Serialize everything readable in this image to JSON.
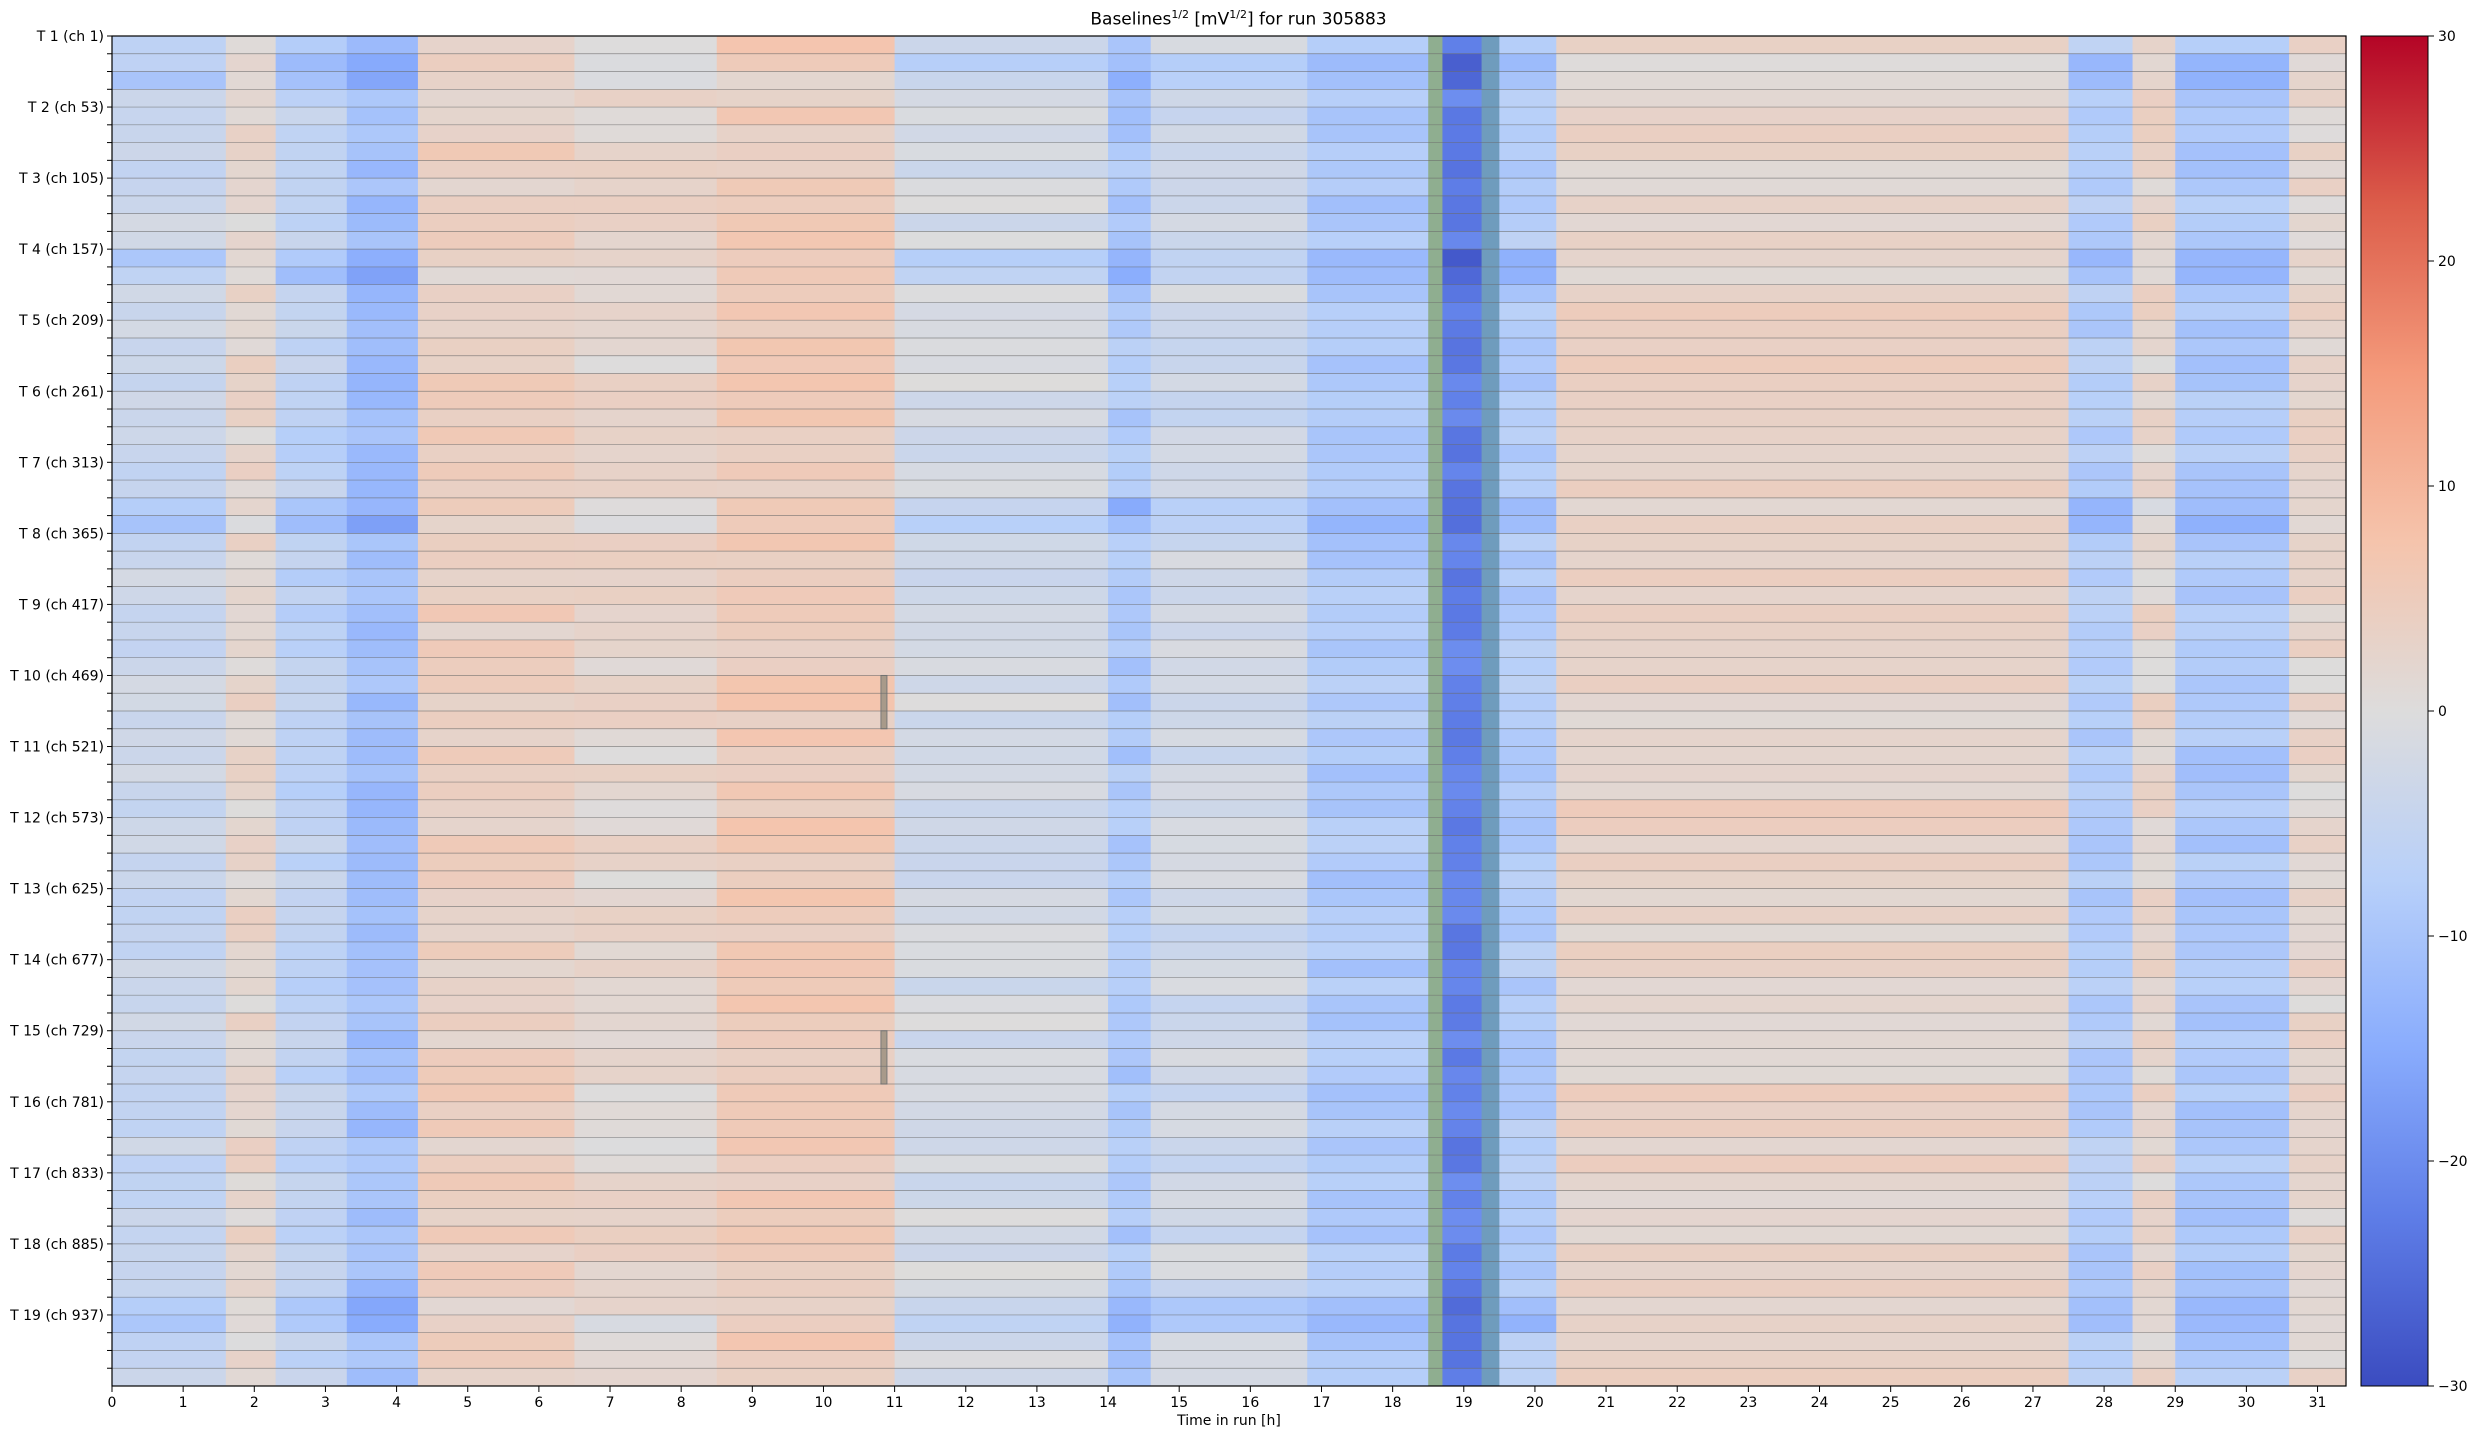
{
  "title_parts": {
    "base": "Baselines",
    "sup1": "1/2",
    "mid": " [mV",
    "sup2": "1/2",
    "end": "] for run 305883"
  },
  "chart_data": {
    "type": "heatmap",
    "title": "Baselines^1/2 [mV^1/2] for run 305883",
    "xlabel": "Time in run [h]",
    "ylabel": "",
    "xlim": [
      0,
      31.4
    ],
    "x_ticks": [
      0,
      1,
      2,
      3,
      4,
      5,
      6,
      7,
      8,
      9,
      10,
      11,
      12,
      13,
      14,
      15,
      16,
      17,
      18,
      19,
      20,
      21,
      22,
      23,
      24,
      25,
      26,
      27,
      28,
      29,
      30,
      31
    ],
    "y_tick_labels": [
      "T 1 (ch 1)",
      "T 2 (ch 53)",
      "T 3 (ch 105)",
      "T 4 (ch 157)",
      "T 5 (ch 209)",
      "T 6 (ch 261)",
      "T 7 (ch 313)",
      "T 8 (ch 365)",
      "T 9 (ch 417)",
      "T 10 (ch 469)",
      "T 11 (ch 521)",
      "T 12 (ch 573)",
      "T 13 (ch 625)",
      "T 14 (ch 677)",
      "T 15 (ch 729)",
      "T 16 (ch 781)",
      "T 17 (ch 833)",
      "T 18 (ch 885)",
      "T 19 (ch 937)"
    ],
    "n_rows": 76,
    "rows_per_tower": 4,
    "colorbar": {
      "colormap": "coolwarm",
      "vmin": -30,
      "vmax": 30,
      "ticks": [
        30,
        20,
        10,
        0,
        -10,
        -20,
        -30
      ],
      "colors": [
        "#3b4cc0",
        "#5e7de7",
        "#89acfd",
        "#b8d0f9",
        "#dddcdc",
        "#f5c4ac",
        "#f49a7b",
        "#dc5d4a",
        "#b40426"
      ]
    },
    "time_profile": [
      {
        "x": [
          0,
          1.6
        ],
        "value": -4
      },
      {
        "x": [
          1.6,
          2.3
        ],
        "value": 2
      },
      {
        "x": [
          2.3,
          3.3
        ],
        "value": -6
      },
      {
        "x": [
          3.3,
          4.3
        ],
        "value": -11
      },
      {
        "x": [
          4.3,
          6.5
        ],
        "value": 4
      },
      {
        "x": [
          6.5,
          8.5
        ],
        "value": 2
      },
      {
        "x": [
          8.5,
          11.0
        ],
        "value": 5
      },
      {
        "x": [
          11.0,
          14.0
        ],
        "value": -2
      },
      {
        "x": [
          14.0,
          14.6
        ],
        "value": -9
      },
      {
        "x": [
          14.6,
          16.8
        ],
        "value": -3
      },
      {
        "x": [
          16.8,
          18.5
        ],
        "value": -9
      },
      {
        "x": [
          18.5,
          18.7
        ],
        "value": "masked"
      },
      {
        "x": [
          18.7,
          19.25
        ],
        "value": -22
      },
      {
        "x": [
          19.25,
          19.5
        ],
        "value": "masked"
      },
      {
        "x": [
          19.5,
          20.3
        ],
        "value": -8
      },
      {
        "x": [
          20.3,
          27.5
        ],
        "value": 3
      },
      {
        "x": [
          27.5,
          28.4
        ],
        "value": -8
      },
      {
        "x": [
          28.4,
          29.0
        ],
        "value": 2
      },
      {
        "x": [
          29.0,
          30.6
        ],
        "value": -9
      },
      {
        "x": [
          30.6,
          31.4
        ],
        "value": 2
      }
    ],
    "low_rows": [
      1,
      12,
      26,
      71
    ],
    "masked_segments": [
      {
        "x": 10.85,
        "rows": [
          36,
          39
        ]
      },
      {
        "x": 10.85,
        "rows": [
          56,
          59
        ]
      }
    ]
  }
}
